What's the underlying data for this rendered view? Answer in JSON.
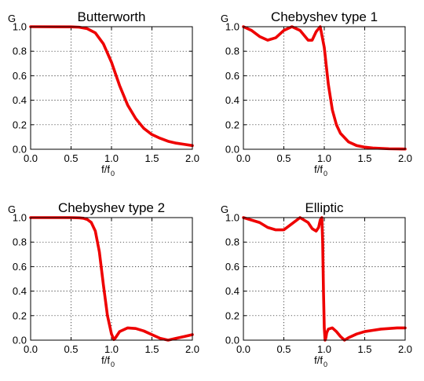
{
  "style": {
    "line_color": "#ee0000",
    "grid": "dotted",
    "background": "#ffffff"
  },
  "chart_data": [
    {
      "type": "line",
      "title": "Butterworth",
      "ylabel": "G",
      "xlabel": "f/f",
      "xlabel_subscript": "0",
      "xlim": [
        0,
        2.0
      ],
      "ylim": [
        0,
        1.0
      ],
      "xticks": [
        "0.0",
        "0.5",
        "1.0",
        "1.5",
        "2.0"
      ],
      "yticks": [
        "0.0",
        "0.2",
        "0.4",
        "0.6",
        "0.8",
        "1.0"
      ],
      "series": [
        {
          "x": [
            0,
            0.5,
            0.6,
            0.7,
            0.8,
            0.9,
            1.0,
            1.1,
            1.2,
            1.3,
            1.4,
            1.5,
            1.6,
            1.7,
            1.8,
            1.9,
            2.0
          ],
          "y": [
            1.0,
            0.999,
            0.996,
            0.984,
            0.95,
            0.86,
            0.71,
            0.52,
            0.36,
            0.25,
            0.17,
            0.12,
            0.09,
            0.065,
            0.05,
            0.04,
            0.03
          ]
        }
      ]
    },
    {
      "type": "line",
      "title": "Chebyshev type 1",
      "ylabel": "G",
      "xlabel": "f/f",
      "xlabel_subscript": "0",
      "xlim": [
        0,
        2.0
      ],
      "ylim": [
        0,
        1.0
      ],
      "xticks": [
        "0.0",
        "0.5",
        "1.0",
        "1.5",
        "2.0"
      ],
      "yticks": [
        "0.0",
        "0.2",
        "0.4",
        "0.6",
        "0.8",
        "1.0"
      ],
      "series": [
        {
          "x": [
            0,
            0.1,
            0.2,
            0.3,
            0.4,
            0.5,
            0.6,
            0.7,
            0.8,
            0.85,
            0.9,
            0.95,
            1.0,
            1.05,
            1.1,
            1.15,
            1.2,
            1.3,
            1.4,
            1.5,
            1.6,
            1.8,
            2.0
          ],
          "y": [
            1.0,
            0.97,
            0.92,
            0.89,
            0.91,
            0.97,
            1.0,
            0.97,
            0.89,
            0.89,
            0.96,
            1.0,
            0.83,
            0.53,
            0.32,
            0.2,
            0.13,
            0.06,
            0.03,
            0.017,
            0.01,
            0.004,
            0.002
          ]
        }
      ]
    },
    {
      "type": "line",
      "title": "Chebyshev type 2",
      "ylabel": "G",
      "xlabel": "f/f",
      "xlabel_subscript": "0",
      "xlim": [
        0,
        2.0
      ],
      "ylim": [
        0,
        1.0
      ],
      "xticks": [
        "0.0",
        "0.5",
        "1.0",
        "1.5",
        "2.0"
      ],
      "yticks": [
        "0.0",
        "0.2",
        "0.4",
        "0.6",
        "0.8",
        "1.0"
      ],
      "series": [
        {
          "x": [
            0,
            0.5,
            0.6,
            0.65,
            0.7,
            0.75,
            0.8,
            0.85,
            0.9,
            0.95,
            1.0,
            1.03,
            1.05,
            1.1,
            1.2,
            1.3,
            1.4,
            1.5,
            1.6,
            1.7,
            1.8,
            1.9,
            2.0
          ],
          "y": [
            1.0,
            1.0,
            0.998,
            0.995,
            0.985,
            0.96,
            0.89,
            0.72,
            0.45,
            0.2,
            0.05,
            0.005,
            0.02,
            0.07,
            0.1,
            0.095,
            0.075,
            0.045,
            0.015,
            0.0,
            0.015,
            0.03,
            0.045
          ]
        }
      ]
    },
    {
      "type": "line",
      "title": "Elliptic",
      "ylabel": "G",
      "xlabel": "f/f",
      "xlabel_subscript": "0",
      "xlim": [
        0,
        2.0
      ],
      "ylim": [
        0,
        1.0
      ],
      "xticks": [
        "0.0",
        "0.5",
        "1.0",
        "1.5",
        "2.0"
      ],
      "yticks": [
        "0.0",
        "0.2",
        "0.4",
        "0.6",
        "0.8",
        "1.0"
      ],
      "series": [
        {
          "x": [
            0,
            0.1,
            0.2,
            0.3,
            0.4,
            0.5,
            0.6,
            0.7,
            0.8,
            0.85,
            0.9,
            0.93,
            0.95,
            0.97,
            0.98,
            0.99,
            1.0,
            1.01,
            1.02,
            1.03,
            1.05,
            1.1,
            1.15,
            1.2,
            1.25,
            1.3,
            1.4,
            1.5,
            1.6,
            1.7,
            1.8,
            1.9,
            2.0
          ],
          "y": [
            1.0,
            0.98,
            0.96,
            0.92,
            0.9,
            0.9,
            0.95,
            1.0,
            0.96,
            0.91,
            0.89,
            0.92,
            0.98,
            1.0,
            0.8,
            0.4,
            0.1,
            0.0,
            0.02,
            0.06,
            0.09,
            0.1,
            0.07,
            0.03,
            0.0,
            0.02,
            0.05,
            0.07,
            0.08,
            0.09,
            0.095,
            0.1,
            0.1
          ]
        }
      ]
    }
  ]
}
